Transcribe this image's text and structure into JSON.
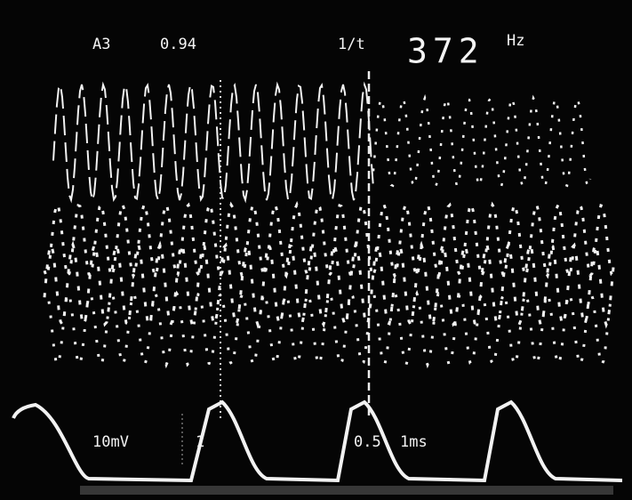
{
  "readout": {
    "channel": "A3",
    "ratio": "0.94",
    "cursor_mode": "1/t",
    "frequency": "372",
    "frequency_unit": "Hz"
  },
  "scale": {
    "volts_per_div": "10mV",
    "channel_label": "1",
    "cursor_value": "0.5",
    "time_per_div": "1ms"
  }
}
